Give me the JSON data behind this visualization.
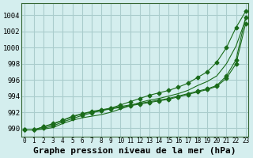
{
  "background_color": "#d4eeee",
  "plot_bg_color": "#d4eeee",
  "grid_color": "#aacccc",
  "line_color": "#1a6b1a",
  "xlabel": "Graphe pression niveau de la mer (hPa)",
  "xlabel_fontsize": 8,
  "ylim": [
    989,
    1005.5
  ],
  "xlim": [
    -0.3,
    23.3
  ],
  "yticks": [
    990,
    992,
    994,
    996,
    998,
    1000,
    1002,
    1004
  ],
  "xticks": [
    0,
    1,
    2,
    3,
    4,
    5,
    6,
    7,
    8,
    9,
    10,
    11,
    12,
    13,
    14,
    15,
    16,
    17,
    18,
    19,
    20,
    21,
    22,
    23
  ],
  "series": [
    [
      989.8,
      989.8,
      989.9,
      990.1,
      990.6,
      991.0,
      991.3,
      991.5,
      991.7,
      992.0,
      992.4,
      992.8,
      993.2,
      993.5,
      993.7,
      994.0,
      994.3,
      994.7,
      995.3,
      995.8,
      996.5,
      998.0,
      1000.2,
      1003.5
    ],
    [
      989.8,
      989.8,
      990.0,
      990.3,
      990.8,
      991.2,
      991.6,
      991.9,
      992.2,
      992.5,
      992.9,
      993.3,
      993.7,
      994.1,
      994.4,
      994.7,
      995.1,
      995.6,
      996.3,
      997.0,
      998.2,
      1000.0,
      1002.5,
      1004.5
    ],
    [
      989.8,
      989.8,
      990.2,
      990.6,
      991.0,
      991.5,
      991.8,
      992.1,
      992.3,
      992.5,
      992.7,
      992.9,
      993.1,
      993.3,
      993.5,
      993.7,
      994.0,
      994.3,
      994.6,
      994.9,
      995.3,
      996.5,
      998.5,
      1003.8
    ],
    [
      989.8,
      989.8,
      990.2,
      990.5,
      991.0,
      991.4,
      991.8,
      992.0,
      992.2,
      992.4,
      992.6,
      992.8,
      993.0,
      993.2,
      993.4,
      993.6,
      993.9,
      994.2,
      994.5,
      994.8,
      995.2,
      996.2,
      998.0,
      1003.0
    ]
  ],
  "has_markers": [
    false,
    true,
    true,
    true
  ],
  "line_width": 0.8,
  "marker": "D",
  "markersize": 2.5
}
